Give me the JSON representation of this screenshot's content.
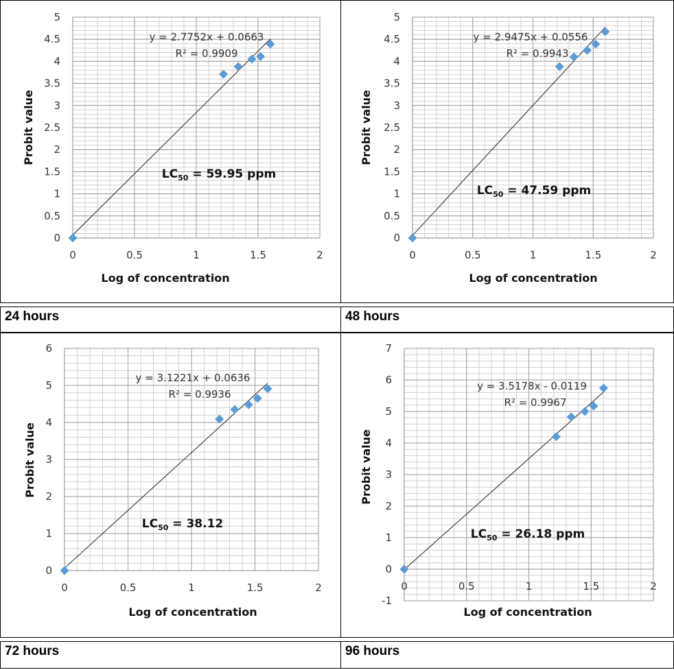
{
  "chart_data": [
    {
      "type": "scatter",
      "caption": "24 hours",
      "xlabel": "Log of concentration",
      "ylabel": "Probit value",
      "xlim": [
        0,
        2
      ],
      "ylim": [
        0,
        5
      ],
      "xticks": [
        0,
        0.5,
        1,
        1.5,
        2
      ],
      "yticks": [
        0,
        0.5,
        1,
        1.5,
        2,
        2.5,
        3,
        3.5,
        4,
        4.5,
        5
      ],
      "x": [
        0,
        1.22,
        1.34,
        1.45,
        1.52,
        1.6
      ],
      "y": [
        0,
        3.71,
        3.88,
        4.05,
        4.11,
        4.39
      ],
      "trendline": {
        "slope": 2.7752,
        "intercept": 0.0663,
        "equation": "y = 2.7752x + 0.0663",
        "r2": "R² = 0.9909"
      },
      "annotation": {
        "lc": "LC",
        "sub": "50",
        "value": " = 59.95 ppm"
      },
      "grid": true,
      "marker_color": "#5b9bd5"
    },
    {
      "type": "scatter",
      "caption": "48 hours",
      "xlabel": "Log of concentration",
      "ylabel": "Probit value",
      "xlim": [
        0,
        2
      ],
      "ylim": [
        0,
        5
      ],
      "xticks": [
        0,
        0.5,
        1,
        1.5,
        2
      ],
      "yticks": [
        0,
        0.5,
        1,
        1.5,
        2,
        2.5,
        3,
        3.5,
        4,
        4.5,
        5
      ],
      "x": [
        0,
        1.22,
        1.34,
        1.45,
        1.52,
        1.6
      ],
      "y": [
        0,
        3.88,
        4.1,
        4.25,
        4.39,
        4.67
      ],
      "trendline": {
        "slope": 2.9475,
        "intercept": 0.0556,
        "equation": "y = 2.9475x + 0.0556",
        "r2": "R² = 0.9943"
      },
      "annotation": {
        "lc": "LC",
        "sub": "50",
        "value": " = 47.59 ppm"
      },
      "grid": true,
      "marker_color": "#5b9bd5"
    },
    {
      "type": "scatter",
      "caption": "72 hours",
      "xlabel": "Log of concentration",
      "ylabel": "Probit value",
      "xlim": [
        0,
        2
      ],
      "ylim": [
        0,
        6
      ],
      "xticks": [
        0,
        0.5,
        1,
        1.5,
        2
      ],
      "yticks": [
        0,
        1,
        2,
        3,
        4,
        5,
        6
      ],
      "x": [
        0,
        1.22,
        1.34,
        1.45,
        1.52,
        1.6
      ],
      "y": [
        0,
        4.09,
        4.35,
        4.48,
        4.65,
        4.91
      ],
      "trendline": {
        "slope": 3.1221,
        "intercept": 0.0636,
        "equation": "y = 3.1221x + 0.0636",
        "r2": "R² = 0.9936"
      },
      "annotation": {
        "lc": "LC",
        "sub": "50",
        "value": " = 38.12"
      },
      "grid": true,
      "marker_color": "#5b9bd5"
    },
    {
      "type": "scatter",
      "caption": "96 hours",
      "xlabel": "Log of concentration",
      "ylabel": "Probit value",
      "xlim": [
        0,
        2
      ],
      "ylim": [
        -1,
        7
      ],
      "xticks": [
        0,
        0.5,
        1,
        1.5,
        2
      ],
      "yticks": [
        -1,
        0,
        1,
        2,
        3,
        4,
        5,
        6,
        7
      ],
      "x": [
        0,
        1.22,
        1.34,
        1.45,
        1.52,
        1.6
      ],
      "y": [
        0,
        4.2,
        4.83,
        5.0,
        5.17,
        5.74
      ],
      "trendline": {
        "slope": 3.5178,
        "intercept": -0.0119,
        "equation": "y = 3.5178x - 0.0119",
        "r2": "R² = 0.9967"
      },
      "annotation": {
        "lc": "LC",
        "sub": "50",
        "value": " = 26.18 ppm"
      },
      "grid": true,
      "marker_color": "#5b9bd5"
    }
  ]
}
